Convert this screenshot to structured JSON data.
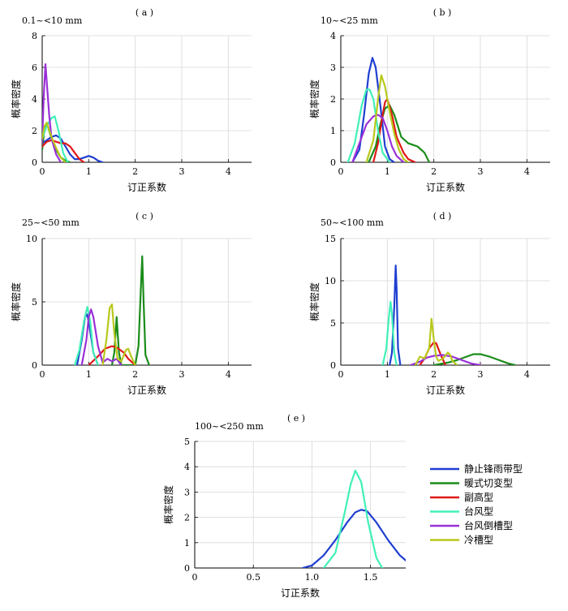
{
  "chart_data": {
    "type": "line",
    "xlabel": "订正系数",
    "ylabel": "概率密度",
    "series_colors": {
      "静止锋雨带型": "#1f3fd0",
      "暖式切变型": "#1a8c1a",
      "副高型": "#e01818",
      "台风型": "#40f0b8",
      "台风倒槽型": "#9a30d8",
      "冷槽型": "#b8c81c"
    },
    "legend": {
      "position": "right-of-panel-e",
      "entries": [
        "静止锋雨带型",
        "暖式切变型",
        "副高型",
        "台风型",
        "台风倒槽型",
        "冷槽型"
      ]
    },
    "grid": true,
    "panels": [
      {
        "tag": "( a )",
        "range_label": "0.1~<10 mm",
        "xlim": [
          0,
          4.5
        ],
        "ylim": [
          0,
          8
        ],
        "xticks": [
          0,
          1,
          2,
          3,
          4
        ],
        "yticks": [
          0,
          2,
          4,
          6,
          8
        ],
        "series": [
          {
            "name": "静止锋雨带型",
            "x": [
              0,
              0.1,
              0.2,
              0.3,
              0.4,
              0.5,
              0.6,
              0.7,
              0.8,
              0.9,
              1.0,
              1.1,
              1.2,
              1.3
            ],
            "y": [
              1.2,
              1.4,
              1.6,
              1.7,
              1.5,
              1.0,
              0.5,
              0.2,
              0.2,
              0.3,
              0.4,
              0.3,
              0.1,
              0
            ]
          },
          {
            "name": "暖式切变型",
            "x": [
              0,
              0.05,
              0.1,
              0.2,
              0.3,
              0.4,
              0.5,
              0.6
            ],
            "y": [
              0.8,
              2.2,
              2.5,
              1.5,
              0.8,
              0.3,
              0.1,
              0
            ]
          },
          {
            "name": "副高型",
            "x": [
              0,
              0.1,
              0.2,
              0.3,
              0.4,
              0.5,
              0.6,
              0.7,
              0.8,
              0.9
            ],
            "y": [
              1.0,
              1.3,
              1.4,
              1.3,
              1.2,
              1.2,
              1.0,
              0.6,
              0.2,
              0
            ]
          },
          {
            "name": "台风型",
            "x": [
              0,
              0.1,
              0.2,
              0.27,
              0.35,
              0.45,
              0.55
            ],
            "y": [
              1.5,
              2.3,
              2.8,
              2.9,
              2.0,
              0.6,
              0
            ]
          },
          {
            "name": "台风倒槽型",
            "x": [
              0,
              0.03,
              0.07,
              0.1,
              0.15,
              0.2,
              0.3,
              0.4
            ],
            "y": [
              1.2,
              4.0,
              6.2,
              5.0,
              3.0,
              1.5,
              0.5,
              0
            ]
          },
          {
            "name": "冷槽型",
            "x": [
              0,
              0.05,
              0.1,
              0.2,
              0.3,
              0.4,
              0.5
            ],
            "y": [
              1.5,
              2.3,
              2.5,
              1.6,
              0.9,
              0.3,
              0
            ]
          }
        ]
      },
      {
        "tag": "( b )",
        "range_label": "10~<25 mm",
        "xlim": [
          0,
          4.5
        ],
        "ylim": [
          0,
          4
        ],
        "xticks": [
          0,
          1,
          2,
          3,
          4
        ],
        "yticks": [
          0,
          1,
          2,
          3,
          4
        ],
        "series": [
          {
            "name": "静止锋雨带型",
            "x": [
              0.25,
              0.4,
              0.5,
              0.6,
              0.68,
              0.75,
              0.85,
              0.95,
              1.05,
              1.15
            ],
            "y": [
              0,
              0.4,
              1.5,
              2.8,
              3.3,
              3.0,
              1.8,
              0.5,
              0.1,
              0
            ]
          },
          {
            "name": "暖式切变型",
            "x": [
              0.6,
              0.75,
              0.85,
              0.95,
              1.05,
              1.15,
              1.3,
              1.45,
              1.55,
              1.65,
              1.8,
              1.9
            ],
            "y": [
              0,
              0.5,
              1.2,
              1.7,
              1.8,
              1.5,
              0.8,
              0.6,
              0.55,
              0.5,
              0.3,
              0
            ]
          },
          {
            "name": "副高型",
            "x": [
              0.7,
              0.8,
              0.9,
              0.95,
              1.0,
              1.1,
              1.2,
              1.35,
              1.45,
              1.6
            ],
            "y": [
              0,
              0.6,
              1.5,
              1.9,
              2.0,
              1.5,
              0.8,
              0.3,
              0.1,
              0
            ]
          },
          {
            "name": "台风型",
            "x": [
              0.15,
              0.3,
              0.45,
              0.55,
              0.62,
              0.7,
              0.8,
              0.9,
              1.0,
              1.05
            ],
            "y": [
              0,
              0.6,
              1.8,
              2.3,
              2.3,
              2.0,
              1.0,
              0.3,
              0.1,
              0
            ]
          },
          {
            "name": "台风倒槽型",
            "x": [
              0.25,
              0.4,
              0.55,
              0.7,
              0.8,
              0.9,
              1.0,
              1.1,
              1.2,
              1.35
            ],
            "y": [
              0,
              0.6,
              1.2,
              1.45,
              1.5,
              1.4,
              1.0,
              0.5,
              0.2,
              0
            ]
          },
          {
            "name": "冷槽型",
            "x": [
              0.55,
              0.7,
              0.8,
              0.87,
              0.95,
              1.05,
              1.15,
              1.25,
              1.35,
              1.45
            ],
            "y": [
              0,
              0.7,
              2.0,
              2.75,
              2.4,
              1.6,
              0.9,
              0.4,
              0.1,
              0
            ]
          }
        ]
      },
      {
        "tag": "( c )",
        "range_label": "25~<50 mm",
        "xlim": [
          0,
          4.5
        ],
        "ylim": [
          0,
          10
        ],
        "xticks": [
          0,
          1,
          2,
          3,
          4
        ],
        "yticks": [
          0,
          5,
          10
        ],
        "series": [
          {
            "name": "静止锋雨带型",
            "x": [
              0.75,
              0.85,
              0.92,
              0.97,
              1.02,
              1.1,
              1.2
            ],
            "y": [
              0,
              2.0,
              3.8,
              4.0,
              3.0,
              1.0,
              0
            ]
          },
          {
            "name": "暖式切变型",
            "x": [
              1.5,
              1.55,
              1.6,
              1.65,
              1.7,
              2.0,
              2.07,
              2.12,
              2.15,
              2.18,
              2.22,
              2.3
            ],
            "y": [
              0,
              1.0,
              3.8,
              1.0,
              0,
              0,
              1.5,
              6.0,
              8.6,
              5.0,
              0.8,
              0
            ]
          },
          {
            "name": "副高型",
            "x": [
              1.0,
              1.2,
              1.35,
              1.5,
              1.6,
              1.75,
              1.85,
              2.0
            ],
            "y": [
              0,
              0.7,
              1.3,
              1.5,
              1.4,
              1.0,
              0.5,
              0
            ]
          },
          {
            "name": "台风型",
            "x": [
              0.7,
              0.8,
              0.9,
              0.97,
              1.03,
              1.1,
              1.2
            ],
            "y": [
              0,
              1.2,
              3.5,
              4.6,
              3.5,
              1.0,
              0
            ]
          },
          {
            "name": "台风倒槽型",
            "x": [
              0.85,
              0.95,
              1.0,
              1.05,
              1.1,
              1.2,
              1.3,
              1.4,
              1.5,
              1.6,
              1.7
            ],
            "y": [
              0,
              2.0,
              3.8,
              4.4,
              3.8,
              1.5,
              0.2,
              0.5,
              0.3,
              0.5,
              0
            ]
          },
          {
            "name": "冷槽型",
            "x": [
              1.3,
              1.38,
              1.45,
              1.5,
              1.55,
              1.62,
              1.7,
              1.8,
              1.85,
              1.9,
              2.0
            ],
            "y": [
              0,
              2.0,
              4.5,
              4.8,
              2.5,
              0.5,
              0.3,
              1.2,
              1.3,
              0.8,
              0
            ]
          }
        ]
      },
      {
        "tag": "( d )",
        "range_label": "50~<100 mm",
        "xlim": [
          0,
          4.5
        ],
        "ylim": [
          0,
          15
        ],
        "xticks": [
          0,
          1,
          2,
          3,
          4
        ],
        "yticks": [
          0,
          5,
          10,
          15
        ],
        "series": [
          {
            "name": "静止锋雨带型",
            "x": [
              1.05,
              1.1,
              1.15,
              1.18,
              1.2,
              1.23,
              1.28
            ],
            "y": [
              0,
              1.5,
              7.0,
              11.8,
              9.0,
              2.0,
              0
            ]
          },
          {
            "name": "暖式切变型",
            "x": [
              2.0,
              2.3,
              2.5,
              2.7,
              2.85,
              3.0,
              3.2,
              3.4,
              3.6,
              3.75
            ],
            "y": [
              0,
              0.3,
              0.6,
              1.0,
              1.3,
              1.3,
              1.0,
              0.6,
              0.2,
              0
            ]
          },
          {
            "name": "副高型",
            "x": [
              1.7,
              1.8,
              1.9,
              2.0,
              2.05,
              2.15,
              2.25
            ],
            "y": [
              0,
              0.8,
              2.0,
              2.7,
              2.6,
              1.2,
              0
            ]
          },
          {
            "name": "台风型",
            "x": [
              0.9,
              0.98,
              1.03,
              1.07,
              1.1,
              1.15,
              1.2
            ],
            "y": [
              0,
              2.0,
              5.5,
              7.5,
              6.0,
              1.5,
              0
            ]
          },
          {
            "name": "台风倒槽型",
            "x": [
              1.5,
              1.7,
              1.85,
              2.0,
              2.2,
              2.4,
              2.6,
              2.8,
              3.0
            ],
            "y": [
              0,
              0.4,
              0.9,
              1.1,
              1.2,
              1.0,
              0.6,
              0.2,
              0
            ]
          },
          {
            "name": "冷槽型",
            "x": [
              1.6,
              1.7,
              1.8,
              1.9,
              1.95,
              2.0,
              2.05,
              2.1,
              2.2,
              2.3,
              2.35,
              2.4,
              2.5
            ],
            "y": [
              0,
              1.0,
              0.8,
              2.0,
              5.5,
              3.0,
              1.0,
              0.5,
              0.8,
              1.5,
              1.2,
              0.5,
              0
            ]
          }
        ]
      },
      {
        "tag": "( e )",
        "range_label": "100~<250 mm",
        "xlim": [
          0,
          1.8
        ],
        "ylim": [
          0,
          5
        ],
        "xticks": [
          0,
          0.5,
          1.0,
          1.5
        ],
        "xtick_labels": [
          "0",
          "0.5",
          "1.0",
          "1.5"
        ],
        "yticks": [
          0,
          1,
          2,
          3,
          4,
          5
        ],
        "series": [
          {
            "name": "静止锋雨带型",
            "x": [
              0.92,
              1.0,
              1.1,
              1.2,
              1.3,
              1.37,
              1.42,
              1.47,
              1.55,
              1.65,
              1.75,
              1.8
            ],
            "y": [
              0,
              0.1,
              0.5,
              1.1,
              1.8,
              2.2,
              2.3,
              2.25,
              1.8,
              1.1,
              0.5,
              0.3
            ]
          },
          {
            "name": "台风型",
            "x": [
              1.1,
              1.2,
              1.28,
              1.33,
              1.37,
              1.42,
              1.48,
              1.55,
              1.6
            ],
            "y": [
              0,
              0.6,
              2.2,
              3.3,
              3.85,
              3.4,
              1.8,
              0.4,
              0
            ]
          }
        ]
      }
    ]
  }
}
